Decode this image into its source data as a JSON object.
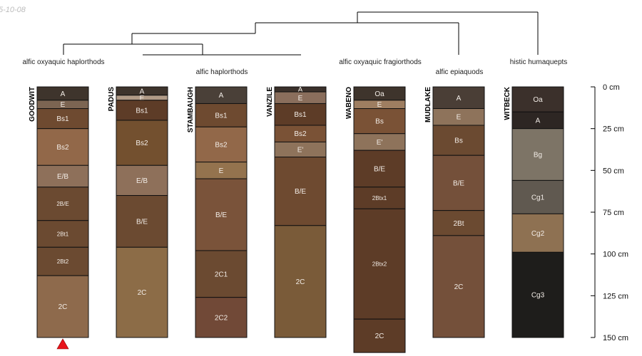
{
  "date_stamp": "5-10-08",
  "group_labels": [
    {
      "key": "g1",
      "text": "alfic oxyaquic haplorthods"
    },
    {
      "key": "g2",
      "text": "alfic haplorthods"
    },
    {
      "key": "g3",
      "text": "alfic oxyaquic fragiorthods"
    },
    {
      "key": "g4",
      "text": "alfic epiaquods"
    },
    {
      "key": "g5",
      "text": "histic humaquepts"
    }
  ],
  "depth_axis": {
    "max_cm": 150,
    "ticks": [
      {
        "value": 0,
        "label": "0 cm"
      },
      {
        "value": 25,
        "label": "25 cm"
      },
      {
        "value": 50,
        "label": "50 cm"
      },
      {
        "value": 75,
        "label": "75 cm"
      },
      {
        "value": 100,
        "label": "100 cm"
      },
      {
        "value": 125,
        "label": "125 cm"
      },
      {
        "value": 150,
        "label": "150 cm"
      }
    ]
  },
  "profiles": [
    {
      "name": "GOODWIT",
      "marker": "red-triangle",
      "horizons": [
        {
          "name": "A",
          "top": 0,
          "bottom": 8,
          "color": "#3e342c"
        },
        {
          "name": "E",
          "top": 8,
          "bottom": 13,
          "color": "#7c6552"
        },
        {
          "name": "Bs1",
          "top": 13,
          "bottom": 25,
          "color": "#6e4a30"
        },
        {
          "name": "Bs2",
          "top": 25,
          "bottom": 47,
          "color": "#926849"
        },
        {
          "name": "E/B",
          "top": 47,
          "bottom": 60,
          "color": "#8e705a"
        },
        {
          "name": "2B/E",
          "top": 60,
          "bottom": 80,
          "color": "#6b4a31"
        },
        {
          "name": "2Bt1",
          "top": 80,
          "bottom": 96,
          "color": "#6b4a31"
        },
        {
          "name": "2Bt2",
          "top": 96,
          "bottom": 113,
          "color": "#6b4a31"
        },
        {
          "name": "2C",
          "top": 113,
          "bottom": 150,
          "color": "#8e6a4c"
        }
      ]
    },
    {
      "name": "PADUS",
      "horizons": [
        {
          "name": "A",
          "top": 0,
          "bottom": 5,
          "color": "#3e342c"
        },
        {
          "name": "E",
          "top": 5,
          "bottom": 8,
          "color": "#b09a86"
        },
        {
          "name": "Bs1",
          "top": 8,
          "bottom": 20,
          "color": "#5d3c27"
        },
        {
          "name": "Bs2",
          "top": 20,
          "bottom": 47,
          "color": "#73502f"
        },
        {
          "name": "E/B",
          "top": 47,
          "bottom": 65,
          "color": "#8e705a"
        },
        {
          "name": "B/E",
          "top": 65,
          "bottom": 96,
          "color": "#6b4a31"
        },
        {
          "name": "2C",
          "top": 96,
          "bottom": 150,
          "color": "#8c6c47"
        }
      ]
    },
    {
      "name": "STAMBAUGH",
      "horizons": [
        {
          "name": "A",
          "top": 0,
          "bottom": 10,
          "color": "#4a4038"
        },
        {
          "name": "Bs1",
          "top": 10,
          "bottom": 24,
          "color": "#6e4a30"
        },
        {
          "name": "Bs2",
          "top": 24,
          "bottom": 45,
          "color": "#926849"
        },
        {
          "name": "E",
          "top": 45,
          "bottom": 55,
          "color": "#94734e"
        },
        {
          "name": "B/E",
          "top": 55,
          "bottom": 98,
          "color": "#7a533a"
        },
        {
          "name": "2C1",
          "top": 98,
          "bottom": 126,
          "color": "#6b4a31"
        },
        {
          "name": "2C2",
          "top": 126,
          "bottom": 150,
          "color": "#714937"
        }
      ]
    },
    {
      "name": "VANZILE",
      "horizons": [
        {
          "name": "A",
          "top": 0,
          "bottom": 3,
          "color": "#3a302a"
        },
        {
          "name": "E",
          "top": 3,
          "bottom": 10,
          "color": "#8a6e5c"
        },
        {
          "name": "Bs1",
          "top": 10,
          "bottom": 23,
          "color": "#5d3c27"
        },
        {
          "name": "Bs2",
          "top": 23,
          "bottom": 33,
          "color": "#7a5236"
        },
        {
          "name": "E'",
          "top": 33,
          "bottom": 42,
          "color": "#8e735b"
        },
        {
          "name": "B/E",
          "top": 42,
          "bottom": 83,
          "color": "#6e4a30"
        },
        {
          "name": "2C",
          "top": 83,
          "bottom": 150,
          "color": "#7a5b39"
        }
      ]
    },
    {
      "name": "WABENO",
      "horizons": [
        {
          "name": "Oa",
          "top": 0,
          "bottom": 8,
          "color": "#3e342c"
        },
        {
          "name": "E",
          "top": 8,
          "bottom": 13,
          "color": "#9e7e61"
        },
        {
          "name": "Bs",
          "top": 13,
          "bottom": 28,
          "color": "#7a5236"
        },
        {
          "name": "E'",
          "top": 28,
          "bottom": 38,
          "color": "#8e735b"
        },
        {
          "name": "B/E",
          "top": 38,
          "bottom": 60,
          "color": "#5d3c27"
        },
        {
          "name": "2Btx1",
          "top": 60,
          "bottom": 73,
          "color": "#5d3c27"
        },
        {
          "name": "2Btx2",
          "top": 73,
          "bottom": 139,
          "color": "#5d3c27"
        },
        {
          "name": "2C",
          "top": 139,
          "bottom": 159,
          "color": "#5d3c27"
        }
      ]
    },
    {
      "name": "MUDLAKE",
      "horizons": [
        {
          "name": "A",
          "top": 0,
          "bottom": 13,
          "color": "#4a3e36"
        },
        {
          "name": "E",
          "top": 13,
          "bottom": 23,
          "color": "#8e735b"
        },
        {
          "name": "Bs",
          "top": 23,
          "bottom": 41,
          "color": "#6b4a31"
        },
        {
          "name": "B/E",
          "top": 41,
          "bottom": 74,
          "color": "#74503a"
        },
        {
          "name": "2Bt",
          "top": 74,
          "bottom": 89,
          "color": "#6b4a31"
        },
        {
          "name": "2C",
          "top": 89,
          "bottom": 150,
          "color": "#74503a"
        }
      ]
    },
    {
      "name": "WITBECK",
      "horizons": [
        {
          "name": "Oa",
          "top": 0,
          "bottom": 15,
          "color": "#3b302b"
        },
        {
          "name": "A",
          "top": 15,
          "bottom": 25,
          "color": "#2d2623"
        },
        {
          "name": "Bg",
          "top": 25,
          "bottom": 56,
          "color": "#7d7466"
        },
        {
          "name": "Cg1",
          "top": 56,
          "bottom": 76,
          "color": "#605950"
        },
        {
          "name": "Cg2",
          "top": 76,
          "bottom": 99,
          "color": "#8e7152"
        },
        {
          "name": "Cg3",
          "top": 99,
          "bottom": 150,
          "color": "#1e1d1b"
        }
      ]
    }
  ]
}
